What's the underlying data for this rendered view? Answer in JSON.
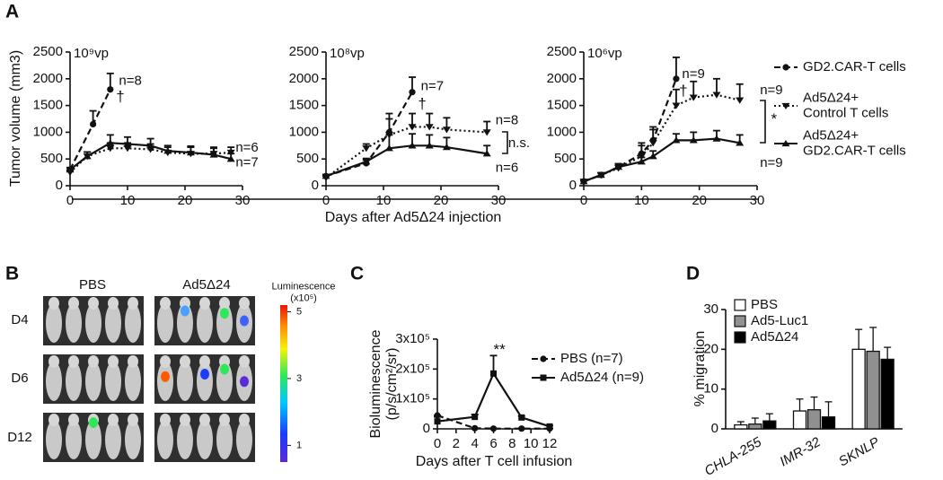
{
  "panel_labels": [
    "A",
    "B",
    "C",
    "D"
  ],
  "image_panel": {
    "columns": [
      "PBS",
      "Ad5Δ24"
    ],
    "rows": [
      "D4",
      "D6",
      "D12"
    ],
    "colorbar_title": "Luminescence\n(x10⁵)",
    "colorbar_ticks": [
      1,
      3,
      5
    ],
    "colorbar_lim": [
      0.5,
      5.2
    ]
  },
  "chart_data": [
    {
      "type": "line",
      "subtitle": "10⁹vp",
      "ylabel": "Tumor volume (mm3)",
      "xlabel": "Days after Ad5Δ24 injection",
      "xlim": [
        0,
        30
      ],
      "xticks": [
        0,
        10,
        20,
        30
      ],
      "ylim": [
        0,
        2500
      ],
      "yticks": [
        0,
        500,
        1000,
        1500,
        2000,
        2500
      ],
      "series": [
        {
          "dash": "dashed",
          "marker": "circle",
          "x": [
            0,
            4,
            7
          ],
          "values": [
            300,
            1150,
            1800
          ],
          "errors": [
            40,
            250,
            300
          ]
        },
        {
          "dash": "dotted",
          "marker": "triangle-down",
          "x": [
            0,
            3,
            7,
            10,
            14,
            17,
            21,
            25,
            28
          ],
          "values": [
            250,
            550,
            700,
            700,
            680,
            620,
            600,
            600,
            620
          ],
          "errors": [
            30,
            80,
            100,
            100,
            100,
            100,
            120,
            120,
            100
          ]
        },
        {
          "dash": "solid",
          "marker": "triangle-up",
          "x": [
            0,
            3,
            7,
            10,
            14,
            17,
            21,
            25,
            28
          ],
          "values": [
            300,
            550,
            800,
            780,
            750,
            650,
            620,
            580,
            500
          ],
          "errors": [
            30,
            80,
            150,
            130,
            130,
            100,
            120,
            120,
            100
          ]
        }
      ],
      "annotations": [
        {
          "text": "n=8",
          "x": 8.5,
          "y": 1950
        },
        {
          "text": "†",
          "x": 8,
          "y": 1650
        },
        {
          "text": "n=6",
          "x": 28.8,
          "y": 700
        },
        {
          "text": "n=7",
          "x": 28.8,
          "y": 430
        }
      ]
    },
    {
      "type": "line",
      "subtitle": "10⁸vp",
      "xlim": [
        0,
        30
      ],
      "xticks": [
        0,
        10,
        20,
        30
      ],
      "ylim": [
        0,
        2500
      ],
      "yticks": [
        0,
        500,
        1000,
        1500,
        2000,
        2500
      ],
      "series": [
        {
          "dash": "dashed",
          "marker": "circle",
          "x": [
            0,
            7,
            11,
            15
          ],
          "values": [
            180,
            420,
            1000,
            1750
          ],
          "errors": [
            30,
            60,
            350,
            280
          ]
        },
        {
          "dash": "dotted",
          "marker": "triangle-down",
          "x": [
            0,
            7,
            11,
            15,
            18,
            21,
            28
          ],
          "values": [
            150,
            700,
            950,
            1100,
            1100,
            1050,
            1000
          ],
          "errors": [
            30,
            80,
            300,
            250,
            250,
            220,
            200
          ]
        },
        {
          "dash": "solid",
          "marker": "triangle-up",
          "x": [
            0,
            7,
            11,
            15,
            18,
            21,
            28
          ],
          "values": [
            180,
            450,
            700,
            750,
            750,
            720,
            600
          ],
          "errors": [
            30,
            60,
            250,
            220,
            200,
            180,
            150
          ]
        }
      ],
      "annotations": [
        {
          "text": "n=7",
          "x": 16.5,
          "y": 1850
        },
        {
          "text": "†",
          "x": 16,
          "y": 1520
        },
        {
          "text": "n=8",
          "x": 29.5,
          "y": 1220
        },
        {
          "text": "n=6",
          "x": 29.5,
          "y": 330
        },
        {
          "text": "n.s.",
          "x": 31.7,
          "y": 790
        }
      ]
    },
    {
      "type": "line",
      "subtitle": "10⁶vp",
      "xlim": [
        0,
        30
      ],
      "xticks": [
        0,
        10,
        20,
        30
      ],
      "ylim": [
        0,
        2500
      ],
      "yticks": [
        0,
        500,
        1000,
        1500,
        2000,
        2500
      ],
      "series": [
        {
          "name": "GD2.CAR-T cells",
          "dash": "dashed",
          "marker": "circle",
          "x": [
            0,
            3,
            6,
            10,
            12,
            16
          ],
          "values": [
            80,
            200,
            350,
            600,
            850,
            2000
          ],
          "errors": [
            20,
            40,
            60,
            200,
            250,
            400
          ]
        },
        {
          "name": "Ad5Δ24+\nControl T cells",
          "dash": "dotted",
          "marker": "triangle-down",
          "x": [
            0,
            3,
            6,
            10,
            12,
            16,
            19,
            23,
            27
          ],
          "values": [
            80,
            200,
            330,
            550,
            800,
            1500,
            1650,
            1700,
            1600
          ],
          "errors": [
            20,
            40,
            60,
            200,
            250,
            300,
            300,
            300,
            300
          ]
        },
        {
          "name": "Ad5Δ24+\nGD2.CAR-T cells",
          "dash": "solid",
          "marker": "triangle-up",
          "x": [
            0,
            3,
            6,
            10,
            12,
            16,
            19,
            23,
            27
          ],
          "values": [
            80,
            200,
            350,
            450,
            550,
            850,
            850,
            880,
            800
          ],
          "errors": [
            20,
            40,
            60,
            80,
            100,
            120,
            150,
            150,
            150
          ]
        }
      ],
      "annotations": [
        {
          "text": "n=9",
          "x": 17,
          "y": 2080
        },
        {
          "text": "†",
          "x": 16.5,
          "y": 1760
        },
        {
          "text": "n=9",
          "x": 30.5,
          "y": 1780
        },
        {
          "text": "*",
          "x": 32.4,
          "y": 1230
        },
        {
          "text": "n=9",
          "x": 30.5,
          "y": 420
        }
      ]
    },
    {
      "type": "line",
      "ylabel": "Bioluminescence\n(p/s/cm²/sr)",
      "xlabel": "Days after T cell infusion",
      "xlim": [
        0,
        12
      ],
      "xticks": [
        0,
        2,
        4,
        6,
        8,
        10,
        12
      ],
      "ylim": [
        0,
        300000
      ],
      "yticks": [
        0,
        {
          "value": 100000,
          "label": "1x10⁵"
        },
        {
          "value": 200000,
          "label": "2x10⁵"
        },
        {
          "value": 300000,
          "label": "3x10⁵"
        }
      ],
      "series": [
        {
          "name": "PBS (n=7)",
          "dash": "dashed",
          "marker": "circle",
          "x": [
            0,
            4,
            6,
            9,
            12
          ],
          "values": [
            45000,
            2000,
            1000,
            1000,
            1000
          ],
          "errors": [
            0,
            0,
            0,
            0,
            0
          ]
        },
        {
          "name": "Ad5Δ24 (n=9)",
          "dash": "solid",
          "marker": "square",
          "x": [
            0,
            4,
            6,
            9,
            12
          ],
          "values": [
            25000,
            40000,
            185000,
            38000,
            8000
          ],
          "errors": [
            15000,
            8000,
            60000,
            5000,
            3000
          ]
        }
      ],
      "annotations": [
        {
          "text": "**",
          "x": 6,
          "y": 262000
        }
      ]
    },
    {
      "type": "bar",
      "ylabel": "% migration",
      "categories": [
        "CHLA-255",
        "IMR-32",
        "SKNLP"
      ],
      "ylim": [
        0,
        30
      ],
      "yticks": [
        0,
        10,
        20,
        30
      ],
      "series": [
        {
          "name": "PBS",
          "color": "#ffffff",
          "values": [
            1,
            4.5,
            20
          ],
          "errors": [
            0.8,
            3,
            5
          ]
        },
        {
          "name": "Ad5-Luc1",
          "color": "#909090",
          "values": [
            1.2,
            4.8,
            19.5
          ],
          "errors": [
            1.5,
            3.2,
            6
          ]
        },
        {
          "name": "Ad5Δ24",
          "color": "#000000",
          "values": [
            2,
            3,
            17.5
          ],
          "errors": [
            1.8,
            3.8,
            3
          ]
        }
      ]
    }
  ]
}
